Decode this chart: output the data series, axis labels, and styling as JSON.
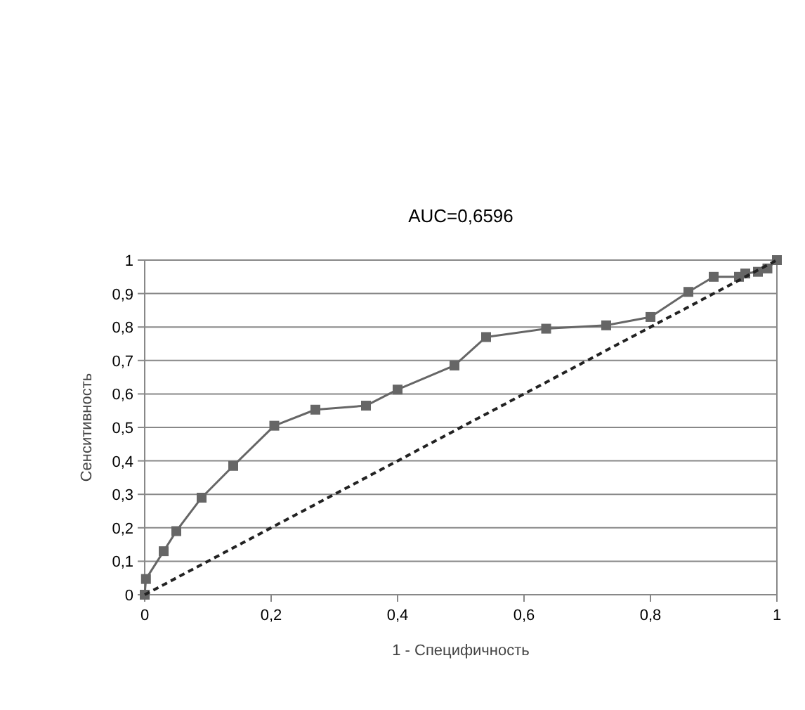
{
  "chart_data": {
    "type": "line",
    "title": "AUC=0,6596",
    "xlabel": "1 - Специфичность",
    "ylabel": "Сенситивность",
    "xlim": [
      0,
      1
    ],
    "xticks": [
      {
        "value": 0,
        "label": "0"
      },
      {
        "value": 0.2,
        "label": "0,2"
      },
      {
        "value": 0.4,
        "label": "0,4"
      },
      {
        "value": 0.6,
        "label": "0,6"
      },
      {
        "value": 0.8,
        "label": "0,8"
      },
      {
        "value": 1,
        "label": "1"
      }
    ],
    "ylim": [
      0,
      1
    ],
    "yticks": [
      {
        "value": 0,
        "label": "0"
      },
      {
        "value": 0.1,
        "label": "0,1"
      },
      {
        "value": 0.2,
        "label": "0,2"
      },
      {
        "value": 0.3,
        "label": "0,3"
      },
      {
        "value": 0.4,
        "label": "0,4"
      },
      {
        "value": 0.5,
        "label": "0,5"
      },
      {
        "value": 0.6,
        "label": "0,6"
      },
      {
        "value": 0.7,
        "label": "0,7"
      },
      {
        "value": 0.8,
        "label": "0,8"
      },
      {
        "value": 0.9,
        "label": "0,9"
      },
      {
        "value": 1,
        "label": "1"
      }
    ],
    "grid": "y",
    "series": [
      {
        "color": "#666666",
        "marker": "square",
        "line_style": "solid",
        "x": [
          0,
          0.002,
          0.03,
          0.05,
          0.09,
          0.14,
          0.205,
          0.27,
          0.35,
          0.4,
          0.49,
          0.54,
          0.635,
          0.73,
          0.8,
          0.86,
          0.9,
          0.94,
          0.95,
          0.97,
          0.985,
          1
        ],
        "values": [
          0,
          0.047,
          0.13,
          0.19,
          0.29,
          0.385,
          0.505,
          0.553,
          0.565,
          0.613,
          0.685,
          0.77,
          0.795,
          0.805,
          0.83,
          0.905,
          0.95,
          0.95,
          0.96,
          0.965,
          0.975,
          1
        ]
      },
      {
        "color": "#222222",
        "marker": "none",
        "line_style": "dashed",
        "x": [
          0,
          1
        ],
        "values": [
          0,
          1
        ]
      }
    ]
  }
}
